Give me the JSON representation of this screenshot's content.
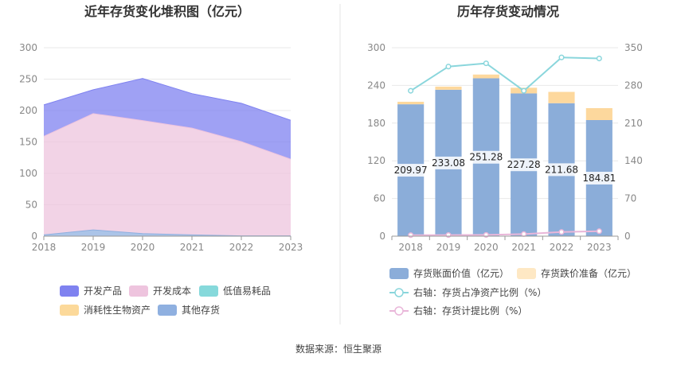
{
  "source": "数据来源：恒生聚源",
  "chart_data": [
    {
      "type": "area",
      "title": "近年存货变化堆积图（亿元）",
      "x": [
        "2018",
        "2019",
        "2020",
        "2021",
        "2022",
        "2023"
      ],
      "ylim": [
        0,
        300
      ],
      "yticks": [
        "0",
        "50",
        "100",
        "150",
        "200",
        "250",
        "300"
      ],
      "grid": true,
      "legend_position": "bottom",
      "series": [
        {
          "name": "开发产品",
          "color": "#7f82f0",
          "values": [
            50.0,
            38.0,
            67.0,
            55.0,
            61.0,
            62.0
          ]
        },
        {
          "name": "开发成本",
          "color": "#eec4de",
          "values": [
            157.0,
            185.0,
            180.0,
            170.0,
            150.0,
            122.0
          ]
        },
        {
          "name": "低值易耗品",
          "color": "#86d9db",
          "values": [
            0,
            0,
            0,
            0,
            0,
            0
          ]
        },
        {
          "name": "消耗性生物资产",
          "color": "#fcd99a",
          "values": [
            0,
            0,
            0,
            0,
            0,
            0
          ]
        },
        {
          "name": "其他存货",
          "color": "#8fb0e0",
          "values": [
            2.0,
            10.0,
            4.0,
            2.0,
            0.5,
            0.5
          ]
        }
      ]
    },
    {
      "type": "bar",
      "title": "历年存货变动情况",
      "categories": [
        "2018",
        "2019",
        "2020",
        "2021",
        "2022",
        "2023"
      ],
      "ylim": [
        0,
        300
      ],
      "yticks": [
        "0",
        "60",
        "120",
        "180",
        "240",
        "300"
      ],
      "y2lim": [
        0,
        350
      ],
      "y2ticks": [
        "0",
        "70",
        "140",
        "210",
        "280",
        "350"
      ],
      "grid": true,
      "legend_position": "bottom",
      "bar_labels": [
        "209.97",
        "233.08",
        "251.28",
        "227.28",
        "211.68",
        "184.81"
      ],
      "series": [
        {
          "name": "存货账面价值（亿元）",
          "color": "#8badd9",
          "axis": "left",
          "values": [
            209.97,
            233.08,
            251.28,
            227.28,
            211.68,
            184.81
          ]
        },
        {
          "name": "存货跌价准备（亿元）",
          "color": "#fdd89d",
          "axis": "left",
          "values": [
            4.0,
            5.0,
            6.0,
            9.0,
            18.0,
            19.0
          ]
        },
        {
          "name": "右轴：存货占净资产比例（%）",
          "color": "#8ad6dc",
          "axis": "right",
          "values": [
            270,
            315,
            321,
            270,
            332,
            330
          ]
        },
        {
          "name": "右轴：存货计提比例（%）",
          "color": "#e9b6d9",
          "axis": "right",
          "values": [
            1.9,
            2.1,
            2.3,
            3.9,
            7.8,
            9.3
          ]
        }
      ]
    }
  ]
}
